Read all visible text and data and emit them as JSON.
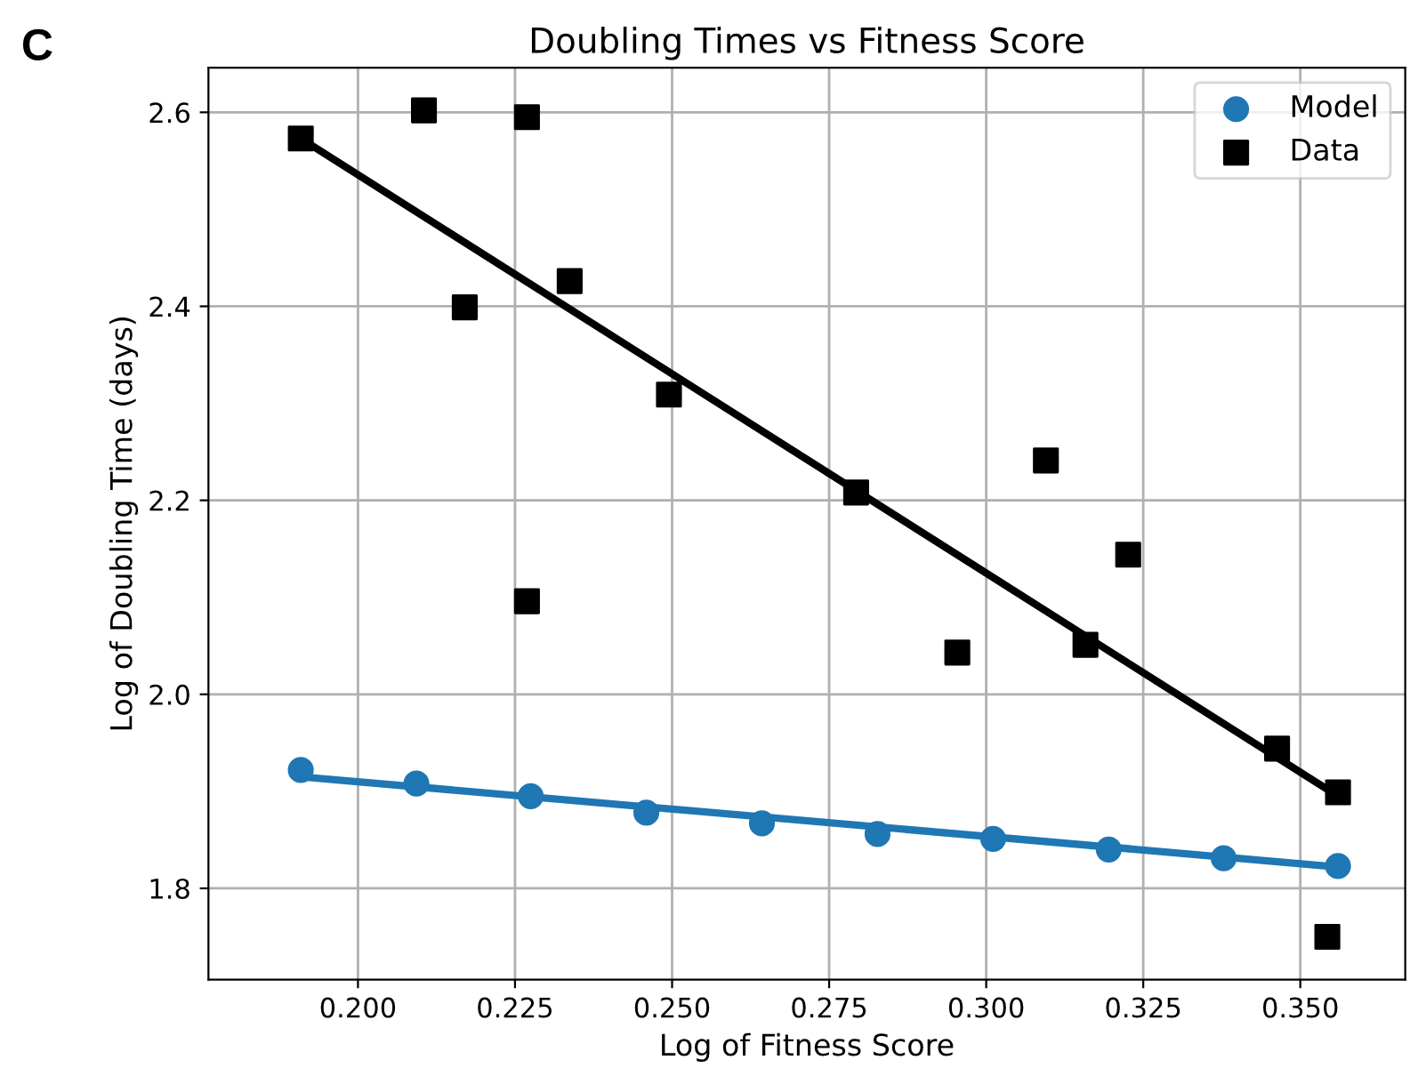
{
  "chart_data": {
    "type": "scatter",
    "title": "Doubling Times vs Fitness Score",
    "xlabel": "Log of Fitness Score",
    "ylabel": "Log of Doubling Time (days)",
    "annotations": [
      "C"
    ],
    "xlim": [
      0.1762,
      0.3667
    ],
    "ylim": [
      1.706,
      2.646
    ],
    "xticks": [
      {
        "value": 0.2,
        "label": "0.200"
      },
      {
        "value": 0.225,
        "label": "0.225"
      },
      {
        "value": 0.25,
        "label": "0.250"
      },
      {
        "value": 0.275,
        "label": "0.275"
      },
      {
        "value": 0.3,
        "label": "0.300"
      },
      {
        "value": 0.325,
        "label": "0.325"
      },
      {
        "value": 0.35,
        "label": "0.350"
      }
    ],
    "yticks": [
      {
        "value": 1.8,
        "label": "1.8"
      },
      {
        "value": 2.0,
        "label": "2.0"
      },
      {
        "value": 2.2,
        "label": "2.2"
      },
      {
        "value": 2.4,
        "label": "2.4"
      },
      {
        "value": 2.6,
        "label": "2.6"
      }
    ],
    "grid": true,
    "legend": "top right",
    "series": [
      {
        "type": "line",
        "color": "#000000",
        "marker": "none",
        "x": [
          0.1909,
          0.356
        ],
        "values": [
          2.573,
          1.895
        ]
      },
      {
        "type": "line",
        "color": "#1f77b4",
        "marker": "none",
        "x": [
          0.1909,
          0.356
        ],
        "values": [
          1.915,
          1.822
        ]
      },
      {
        "name": "Model",
        "color": "#1f77b4",
        "marker": "circle",
        "x": [
          0.1909,
          0.2093,
          0.2275,
          0.2459,
          0.2643,
          0.2827,
          0.3011,
          0.3195,
          0.3378,
          0.356
        ],
        "values": [
          1.922,
          1.908,
          1.895,
          1.878,
          1.867,
          1.856,
          1.851,
          1.84,
          1.831,
          1.823
        ]
      },
      {
        "name": "Data",
        "color": "#000000",
        "marker": "square",
        "x": [
          0.1909,
          0.2105,
          0.217,
          0.2269,
          0.2269,
          0.2337,
          0.2495,
          0.2793,
          0.2954,
          0.3095,
          0.3158,
          0.3226,
          0.3463,
          0.356,
          0.3543
        ],
        "values": [
          2.573,
          2.602,
          2.399,
          2.595,
          2.096,
          2.426,
          2.309,
          2.208,
          2.043,
          2.241,
          2.051,
          2.144,
          1.944,
          1.899,
          1.75
        ]
      }
    ]
  }
}
